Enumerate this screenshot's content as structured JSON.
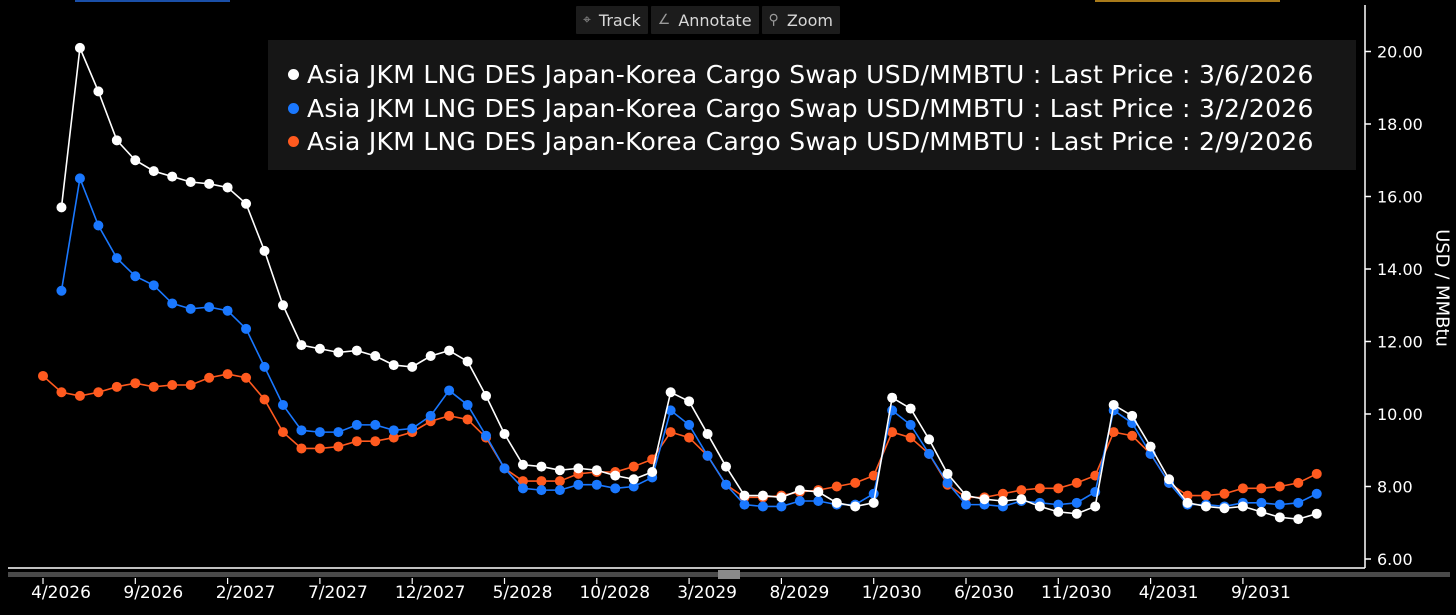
{
  "toolbar": {
    "track_label": "Track",
    "annotate_label": "Annotate",
    "zoom_label": "Zoom",
    "track_icon": "crosshair-icon",
    "annotate_icon": "pencil-icon",
    "zoom_icon": "magnifier-icon"
  },
  "colors": {
    "background": "#000000",
    "legend_bg": "#161616",
    "series_white": "#ffffff",
    "series_blue": "#1a78ff",
    "series_orange": "#ff5a1f"
  },
  "chart_data": {
    "type": "line",
    "title": "",
    "xlabel": "",
    "ylabel": "USD / MMBtu",
    "ylim": [
      5.9,
      21.2
    ],
    "yticks": [
      "20.00",
      "18.00",
      "16.00",
      "14.00",
      "12.00",
      "10.00",
      "8.00",
      "6.00"
    ],
    "ytick_values": [
      20,
      18,
      16,
      14,
      12,
      10,
      8,
      6
    ],
    "xticks": [
      "4/2026",
      "9/2026",
      "2/2027",
      "7/2027",
      "12/2027",
      "5/2028",
      "10/2028",
      "3/2029",
      "8/2029",
      "1/2030",
      "6/2030",
      "11/2030",
      "4/2031",
      "9/2031"
    ],
    "xtick_index": [
      0,
      5,
      10,
      15,
      20,
      25,
      30,
      35,
      40,
      45,
      50,
      55,
      60,
      65
    ],
    "x_start": "2026-04",
    "grid": false,
    "legend_position": "top-right",
    "series": [
      {
        "name": "Asia JKM LNG DES Japan-Korea Cargo Swap USD/MMBTU : Last Price : 3/6/2026",
        "color": "#ffffff",
        "first_month_index": 1,
        "values": [
          15.7,
          20.1,
          18.9,
          17.55,
          17.0,
          16.7,
          16.55,
          16.4,
          16.35,
          16.25,
          15.8,
          14.5,
          13.0,
          11.9,
          11.8,
          11.7,
          11.75,
          11.6,
          11.35,
          11.3,
          11.6,
          11.75,
          11.45,
          10.5,
          9.45,
          8.6,
          8.55,
          8.45,
          8.5,
          8.45,
          8.3,
          8.2,
          8.4,
          10.6,
          10.35,
          9.45,
          8.55,
          7.75,
          7.75,
          7.7,
          7.9,
          7.85,
          7.55,
          7.45,
          7.55,
          10.45,
          10.15,
          9.3,
          8.35,
          7.75,
          7.65,
          7.6,
          7.65,
          7.45,
          7.3,
          7.25,
          7.45,
          10.25,
          9.95,
          9.1,
          8.2,
          7.55,
          7.45,
          7.4,
          7.45,
          7.3,
          7.15,
          7.1,
          7.25
        ]
      },
      {
        "name": "Asia JKM LNG DES Japan-Korea Cargo Swap USD/MMBTU : Last Price : 3/2/2026",
        "color": "#1a78ff",
        "first_month_index": 1,
        "values": [
          13.4,
          16.5,
          15.2,
          14.3,
          13.8,
          13.55,
          13.05,
          12.9,
          12.95,
          12.85,
          12.35,
          11.3,
          10.25,
          9.55,
          9.5,
          9.5,
          9.7,
          9.7,
          9.55,
          9.6,
          9.95,
          10.65,
          10.25,
          9.4,
          8.5,
          7.95,
          7.9,
          7.9,
          8.05,
          8.05,
          7.95,
          8.0,
          8.25,
          10.1,
          9.7,
          8.85,
          8.05,
          7.5,
          7.45,
          7.45,
          7.6,
          7.6,
          7.5,
          7.5,
          7.8,
          10.1,
          9.7,
          8.9,
          8.1,
          7.5,
          7.5,
          7.45,
          7.6,
          7.55,
          7.5,
          7.55,
          7.85,
          10.1,
          9.75,
          8.9,
          8.1,
          7.5,
          7.5,
          7.45,
          7.55,
          7.55,
          7.5,
          7.55,
          7.8
        ]
      },
      {
        "name": "Asia JKM LNG DES Japan-Korea Cargo Swap USD/MMBTU : Last Price : 2/9/2026",
        "color": "#ff5a1f",
        "first_month_index": 0,
        "values": [
          11.05,
          10.6,
          10.5,
          10.6,
          10.75,
          10.85,
          10.75,
          10.8,
          10.8,
          11.0,
          11.1,
          11.0,
          10.4,
          9.5,
          9.05,
          9.05,
          9.1,
          9.25,
          9.25,
          9.35,
          9.5,
          9.8,
          9.95,
          9.85,
          9.35,
          8.5,
          8.15,
          8.15,
          8.15,
          8.35,
          8.4,
          8.4,
          8.55,
          8.75,
          9.5,
          9.35,
          8.85,
          8.05,
          7.7,
          7.7,
          7.75,
          7.85,
          7.9,
          8.0,
          8.1,
          8.3,
          9.5,
          9.35,
          8.9,
          8.05,
          7.7,
          7.7,
          7.8,
          7.9,
          7.95,
          7.95,
          8.1,
          8.3,
          9.5,
          9.4,
          8.9,
          8.1,
          7.75,
          7.75,
          7.8,
          7.95,
          7.95,
          8.0,
          8.1,
          8.35
        ]
      }
    ]
  }
}
